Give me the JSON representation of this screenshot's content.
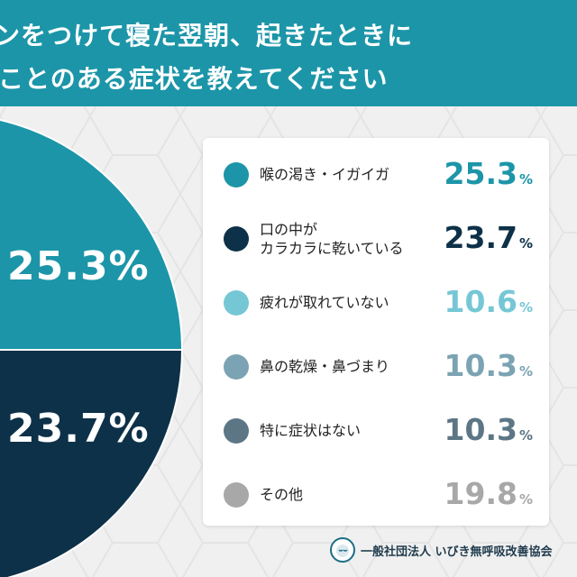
{
  "header": {
    "line1": "ンをつけて寝た翌朝、起きたときに",
    "line2": "ことのある症状を教えてください"
  },
  "chart_data": {
    "type": "pie",
    "categories": [
      "喉の渇き・イガイガ",
      "口の中がカラカラに乾いている",
      "疲れが取れていない",
      "鼻の乾燥・鼻づまり",
      "特に症状はない",
      "その他"
    ],
    "values": [
      25.3,
      23.7,
      10.6,
      10.3,
      10.3,
      19.8
    ],
    "colors": [
      "#1c95a8",
      "#0d3148",
      "#76c7d6",
      "#7ba3b3",
      "#5c7685",
      "#a8a8a8"
    ],
    "unit": "%",
    "pie_labels": [
      "25.3%",
      "23.7%"
    ],
    "legend": [
      {
        "label_lines": [
          "喉の渇き・イガイガ"
        ],
        "value": "25.3",
        "unit": "%",
        "color": "#1c95a8"
      },
      {
        "label_lines": [
          "口の中が",
          "カラカラに乾いている"
        ],
        "value": "23.7",
        "unit": "%",
        "color": "#0d3148"
      },
      {
        "label_lines": [
          "疲れが取れていない"
        ],
        "value": "10.6",
        "unit": "%",
        "color": "#76c7d6"
      },
      {
        "label_lines": [
          "鼻の乾燥・鼻づまり"
        ],
        "value": "10.3",
        "unit": "%",
        "color": "#7ba3b3"
      },
      {
        "label_lines": [
          "特に症状はない"
        ],
        "value": "10.3",
        "unit": "%",
        "color": "#5c7685"
      },
      {
        "label_lines": [
          "その他"
        ],
        "value": "19.8",
        "unit": "%",
        "color": "#a8a8a8"
      }
    ]
  },
  "footer": {
    "org": "一般社団法人 いびき無呼吸改善協会",
    "logo_icon": "sleeping-face-icon"
  }
}
